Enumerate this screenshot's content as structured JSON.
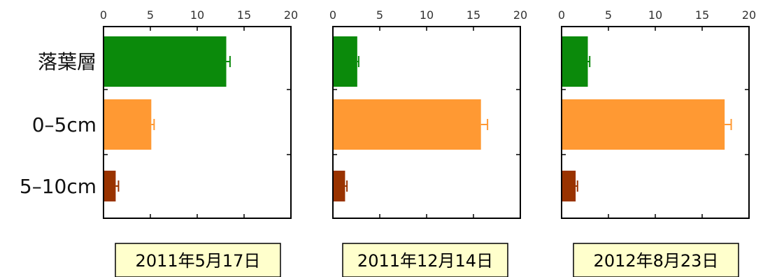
{
  "chart_data": [
    {
      "type": "bar",
      "orientation": "horizontal",
      "date_label": "2011年5月17日",
      "categories": [
        "落葉層",
        "0–5cm",
        "5–10cm"
      ],
      "values": [
        13.1,
        5.1,
        1.3
      ],
      "errors": [
        0.4,
        0.3,
        0.3
      ],
      "colors": [
        "#0b8a0b",
        "#ff9933",
        "#993300"
      ],
      "xlim": [
        0,
        20
      ],
      "xticks": [
        "0",
        "5",
        "10",
        "15",
        "20"
      ],
      "xaxis_position": "top",
      "grid": false
    },
    {
      "type": "bar",
      "orientation": "horizontal",
      "date_label": "2011年12月14日",
      "categories": [
        "落葉層",
        "0–5cm",
        "5–10cm"
      ],
      "values": [
        2.6,
        15.8,
        1.3
      ],
      "errors": [
        0.15,
        0.7,
        0.2
      ],
      "colors": [
        "#0b8a0b",
        "#ff9933",
        "#993300"
      ],
      "xlim": [
        0,
        20
      ],
      "xticks": [
        "0",
        "5",
        "10",
        "15",
        "20"
      ],
      "xaxis_position": "top",
      "grid": false
    },
    {
      "type": "bar",
      "orientation": "horizontal",
      "date_label": "2012年8月23日",
      "categories": [
        "落葉層",
        "0–5cm",
        "5–10cm"
      ],
      "values": [
        2.8,
        17.4,
        1.5
      ],
      "errors": [
        0.2,
        0.7,
        0.2
      ],
      "colors": [
        "#0b8a0b",
        "#ff9933",
        "#993300"
      ],
      "xlim": [
        0,
        20
      ],
      "xticks": [
        "0",
        "5",
        "10",
        "15",
        "20"
      ],
      "xaxis_position": "top",
      "grid": false
    }
  ],
  "style": {
    "label_box_fill": "#ffffcc",
    "axis_color": "#000000",
    "tick_label_color": "#333333"
  }
}
